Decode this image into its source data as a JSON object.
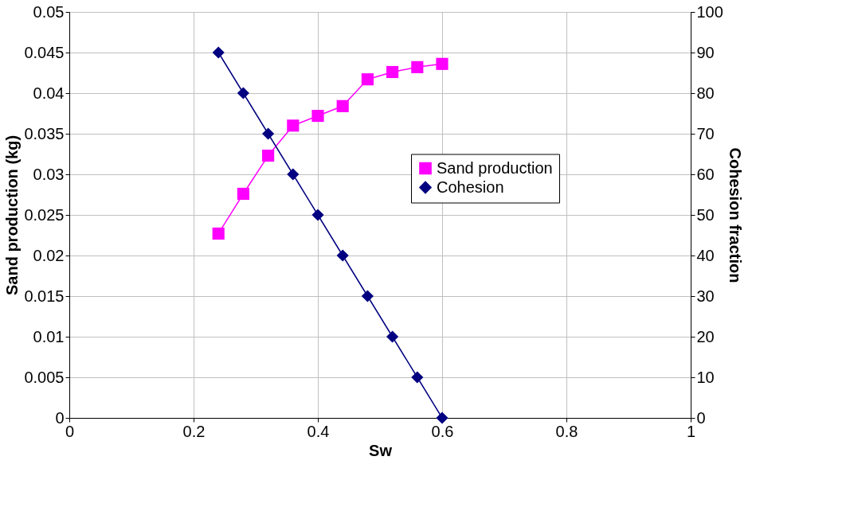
{
  "chart_data": {
    "type": "line",
    "xlabel": "Sw",
    "ylabel": "Sand production (kg)",
    "y2label": "Cohesion fraction",
    "x": [
      0.24,
      0.28,
      0.32,
      0.36,
      0.4,
      0.44,
      0.48,
      0.52,
      0.56,
      0.6
    ],
    "series": [
      {
        "name": "Sand production",
        "color": "#ff00ff",
        "marker": "square",
        "values": [
          0.0227,
          0.0276,
          0.0323,
          0.036,
          0.0372,
          0.0384,
          0.0417,
          0.0426,
          0.0432,
          0.0436
        ]
      },
      {
        "name": "Cohesion",
        "color": "#000080",
        "marker": "diamond",
        "axis": "y2",
        "values": [
          90,
          80,
          70,
          60,
          50,
          40,
          30,
          20,
          10,
          0
        ]
      }
    ],
    "xlim": [
      0,
      1
    ],
    "xticks": [
      0,
      0.2,
      0.4,
      0.6,
      0.8,
      1
    ],
    "ylim": [
      0,
      0.05
    ],
    "yticks": [
      0,
      0.005,
      0.01,
      0.015,
      0.02,
      0.025,
      0.03,
      0.035,
      0.04,
      0.045,
      0.05
    ],
    "y2lim": [
      0,
      100
    ],
    "y2ticks": [
      0,
      10,
      20,
      30,
      40,
      50,
      60,
      70,
      80,
      90,
      100
    ],
    "grid": true,
    "legend": "right",
    "line_style": "solid"
  }
}
